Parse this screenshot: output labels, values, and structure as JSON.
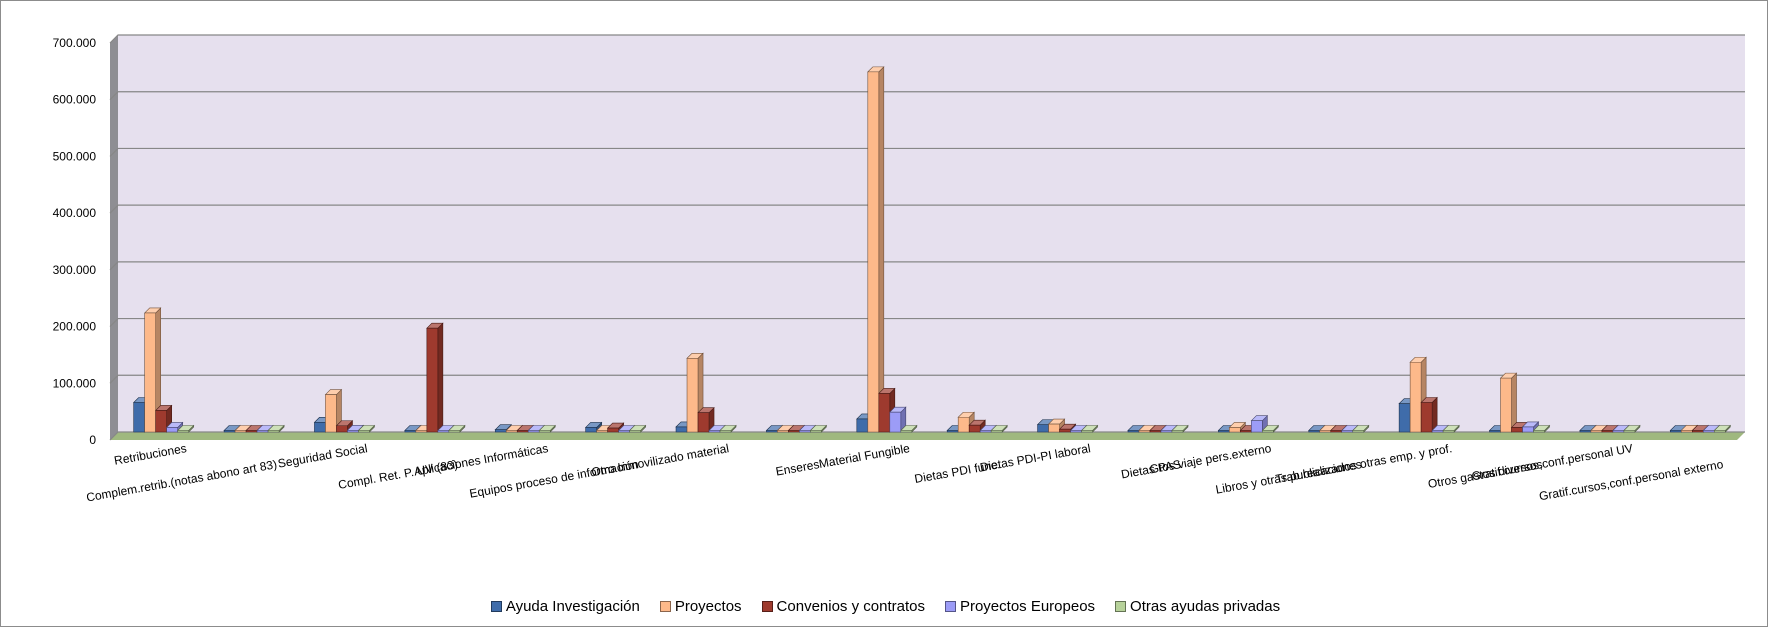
{
  "chart_data": {
    "type": "bar",
    "style": "3d-clustered-column",
    "ylim": [
      0,
      700000
    ],
    "yticks": [
      "0",
      "100.000",
      "200.000",
      "300.000",
      "400.000",
      "500.000",
      "600.000",
      "700.000"
    ],
    "grid": true,
    "legend_position": "bottom",
    "categories": [
      "Retribuciones",
      "Complem.retrib.(notas abono art 83)",
      "Seguridad Social",
      "Compl. Ret. P. UV (83)",
      "Aplicaciones Informáticas",
      "Equipos proceso de información",
      "Otro Inmovilizado material",
      "Enseres",
      "Material Fungible",
      "Dietas PDI func.",
      "Dietas PDI-PI laboral",
      "Dietas PAS",
      "Gtos viaje pers.externo",
      "Libros y otras publicaciones",
      "Trab.realizados otras emp. y prof.",
      "Otros gastos diversos",
      "Gratif.cursos,conf.personal UV",
      "Gratif.cursos,conf.personal externo"
    ],
    "series": [
      {
        "name": "Ayuda Investigación",
        "color": "#3F6CAA",
        "values": [
          52000,
          0,
          17000,
          0,
          4000,
          8000,
          9000,
          0,
          23000,
          0,
          13000,
          0,
          0,
          0,
          50000,
          2000,
          0,
          1000
        ]
      },
      {
        "name": "Proyectos",
        "color": "#FDB98A",
        "values": [
          210000,
          1000,
          66000,
          0,
          1000,
          2000,
          130000,
          1000,
          635000,
          26000,
          14000,
          1000,
          8000,
          1000,
          123000,
          95000,
          1000,
          3000
        ]
      },
      {
        "name": "Convenios y contratos",
        "color": "#9E3A2E",
        "values": [
          38000,
          0,
          11000,
          183000,
          0,
          7000,
          34000,
          0,
          68000,
          12000,
          5000,
          0,
          0,
          0,
          52000,
          8000,
          0,
          0
        ]
      },
      {
        "name": "Proyectos Europeos",
        "color": "#9C9CF7",
        "values": [
          8000,
          0,
          3000,
          0,
          0,
          0,
          0,
          0,
          35000,
          0,
          2000,
          0,
          20000,
          0,
          2000,
          9000,
          0,
          0
        ]
      },
      {
        "name": "Otras ayudas privadas",
        "color": "#B7D29A",
        "values": [
          0,
          0,
          0,
          0,
          0,
          0,
          0,
          0,
          0,
          0,
          0,
          0,
          0,
          0,
          0,
          0,
          0,
          0
        ]
      }
    ]
  }
}
